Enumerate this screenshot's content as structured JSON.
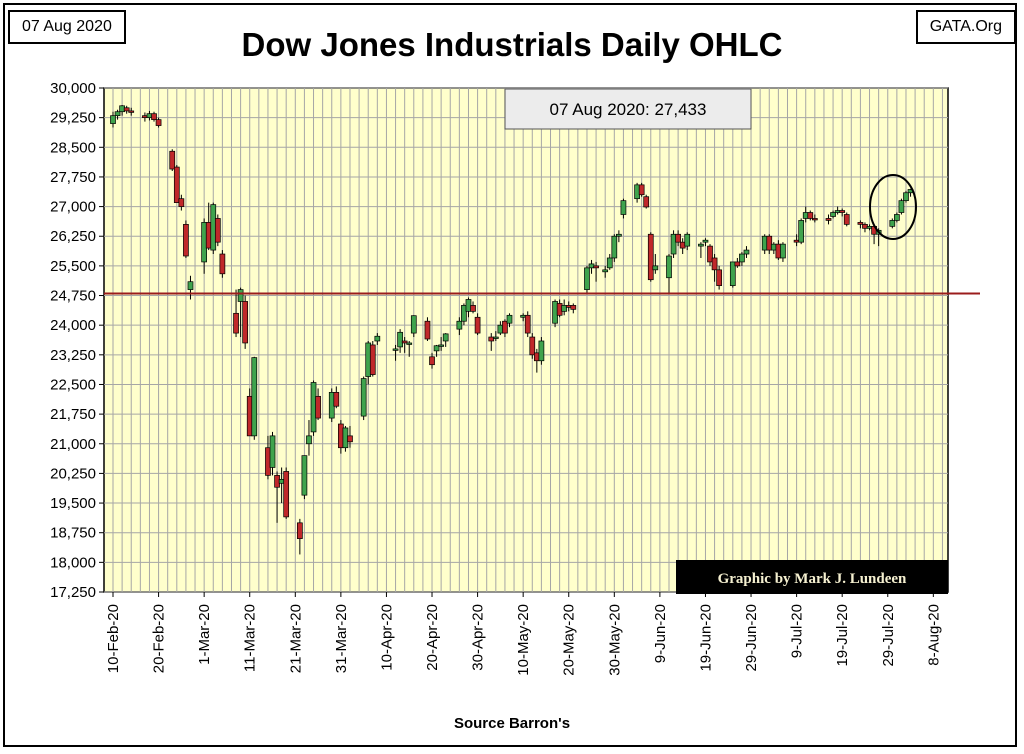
{
  "header": {
    "date": "07 Aug 2020",
    "site": "GATA.Org",
    "title": "Dow Jones Industrials Daily OHLC"
  },
  "footer": {
    "source": "Source Barron's"
  },
  "chart_data": {
    "type": "candlestick",
    "title": "Dow Jones Industrials Daily OHLC",
    "ylim": [
      17250,
      30000
    ],
    "y_ticks": [
      "30,000",
      "29,250",
      "28,500",
      "27,750",
      "27,000",
      "26,250",
      "25,500",
      "24,750",
      "24,000",
      "23,250",
      "22,500",
      "21,750",
      "21,000",
      "20,250",
      "19,500",
      "18,750",
      "18,000",
      "17,250"
    ],
    "y_tick_values": [
      30000,
      29250,
      28500,
      27750,
      27000,
      26250,
      25500,
      24750,
      24000,
      23250,
      22500,
      21750,
      21000,
      20250,
      19500,
      18750,
      18000,
      17250
    ],
    "x_ticks": [
      "10-Feb-20",
      "20-Feb-20",
      "1-Mar-20",
      "11-Mar-20",
      "21-Mar-20",
      "31-Mar-20",
      "10-Apr-20",
      "20-Apr-20",
      "30-Apr-20",
      "10-May-20",
      "20-May-20",
      "30-May-20",
      "9-Jun-20",
      "19-Jun-20",
      "29-Jun-20",
      "9-Jul-20",
      "19-Jul-20",
      "29-Jul-20",
      "8-Aug-20"
    ],
    "x_tick_days": [
      0,
      10,
      20,
      30,
      40,
      50,
      60,
      70,
      80,
      90,
      100,
      110,
      120,
      130,
      140,
      150,
      160,
      170,
      180
    ],
    "grid": true,
    "annotation": "07 Aug 2020: 27,433",
    "reference_line": 24800,
    "credit": "Graphic by Mark J. Lundeen",
    "candles": [
      {
        "d": 0,
        "o": 29100,
        "h": 29400,
        "l": 29000,
        "c": 29300
      },
      {
        "d": 1,
        "o": 29300,
        "h": 29450,
        "l": 29200,
        "c": 29400
      },
      {
        "d": 2,
        "o": 29400,
        "h": 29570,
        "l": 29300,
        "c": 29550
      },
      {
        "d": 3,
        "o": 29500,
        "h": 29550,
        "l": 29350,
        "c": 29420
      },
      {
        "d": 4,
        "o": 29420,
        "h": 29500,
        "l": 29300,
        "c": 29400
      },
      {
        "d": 7,
        "o": 29300,
        "h": 29380,
        "l": 29150,
        "c": 29250
      },
      {
        "d": 8,
        "o": 29250,
        "h": 29420,
        "l": 29180,
        "c": 29350
      },
      {
        "d": 9,
        "o": 29350,
        "h": 29400,
        "l": 29150,
        "c": 29200
      },
      {
        "d": 10,
        "o": 29200,
        "h": 29250,
        "l": 29000,
        "c": 29050
      },
      {
        "d": 13,
        "o": 28400,
        "h": 28450,
        "l": 27900,
        "c": 27950
      },
      {
        "d": 14,
        "o": 28000,
        "h": 28050,
        "l": 27100,
        "c": 27100
      },
      {
        "d": 15,
        "o": 27200,
        "h": 27300,
        "l": 26900,
        "c": 27000
      },
      {
        "d": 16,
        "o": 26550,
        "h": 26650,
        "l": 25700,
        "c": 25750
      },
      {
        "d": 17,
        "o": 24900,
        "h": 25250,
        "l": 24650,
        "c": 25100
      },
      {
        "d": 20,
        "o": 25600,
        "h": 26700,
        "l": 25300,
        "c": 26600
      },
      {
        "d": 21,
        "o": 26600,
        "h": 27100,
        "l": 25900,
        "c": 25950
      },
      {
        "d": 22,
        "o": 25900,
        "h": 27100,
        "l": 25800,
        "c": 27050
      },
      {
        "d": 23,
        "o": 26700,
        "h": 26800,
        "l": 26000,
        "c": 26100
      },
      {
        "d": 24,
        "o": 25800,
        "h": 25900,
        "l": 25200,
        "c": 25300
      },
      {
        "d": 27,
        "o": 24300,
        "h": 24900,
        "l": 23700,
        "c": 23800
      },
      {
        "d": 28,
        "o": 24600,
        "h": 24950,
        "l": 23700,
        "c": 24900
      },
      {
        "d": 29,
        "o": 24600,
        "h": 24750,
        "l": 23400,
        "c": 23550
      },
      {
        "d": 30,
        "o": 22200,
        "h": 22400,
        "l": 21200,
        "c": 21200
      },
      {
        "d": 31,
        "o": 21200,
        "h": 23200,
        "l": 21100,
        "c": 23180
      },
      {
        "d": 34,
        "o": 20900,
        "h": 21200,
        "l": 20100,
        "c": 20200
      },
      {
        "d": 35,
        "o": 20400,
        "h": 21300,
        "l": 20200,
        "c": 21200
      },
      {
        "d": 36,
        "o": 20200,
        "h": 20300,
        "l": 19000,
        "c": 19900
      },
      {
        "d": 37,
        "o": 20000,
        "h": 20400,
        "l": 19500,
        "c": 20100
      },
      {
        "d": 38,
        "o": 20300,
        "h": 20400,
        "l": 19100,
        "c": 19150
      },
      {
        "d": 41,
        "o": 19000,
        "h": 19100,
        "l": 18200,
        "c": 18600
      },
      {
        "d": 42,
        "o": 19700,
        "h": 20700,
        "l": 19600,
        "c": 20700
      },
      {
        "d": 43,
        "o": 21000,
        "h": 21600,
        "l": 20700,
        "c": 21200
      },
      {
        "d": 44,
        "o": 21300,
        "h": 22600,
        "l": 21200,
        "c": 22550
      },
      {
        "d": 45,
        "o": 22200,
        "h": 22400,
        "l": 21600,
        "c": 21650
      },
      {
        "d": 48,
        "o": 21650,
        "h": 22400,
        "l": 21550,
        "c": 22300
      },
      {
        "d": 49,
        "o": 22300,
        "h": 22450,
        "l": 21900,
        "c": 21950
      },
      {
        "d": 50,
        "o": 21500,
        "h": 21600,
        "l": 20750,
        "c": 20900
      },
      {
        "d": 51,
        "o": 20900,
        "h": 21450,
        "l": 20800,
        "c": 21400
      },
      {
        "d": 52,
        "o": 21200,
        "h": 21450,
        "l": 20900,
        "c": 21050
      },
      {
        "d": 55,
        "o": 21700,
        "h": 22700,
        "l": 21600,
        "c": 22650
      },
      {
        "d": 56,
        "o": 22700,
        "h": 23600,
        "l": 22500,
        "c": 23550
      },
      {
        "d": 57,
        "o": 23500,
        "h": 23600,
        "l": 22700,
        "c": 22750
      },
      {
        "d": 58,
        "o": 23600,
        "h": 23800,
        "l": 23500,
        "c": 23720
      },
      {
        "d": 62,
        "o": 23400,
        "h": 23500,
        "l": 23100,
        "c": 23400
      },
      {
        "d": 63,
        "o": 23450,
        "h": 23900,
        "l": 23300,
        "c": 23820
      },
      {
        "d": 64,
        "o": 23600,
        "h": 23700,
        "l": 23300,
        "c": 23550
      },
      {
        "d": 65,
        "o": 23550,
        "h": 23600,
        "l": 23200,
        "c": 23550
      },
      {
        "d": 66,
        "o": 23800,
        "h": 24250,
        "l": 23700,
        "c": 24240
      },
      {
        "d": 69,
        "o": 24100,
        "h": 24200,
        "l": 23600,
        "c": 23650
      },
      {
        "d": 70,
        "o": 23200,
        "h": 23300,
        "l": 22900,
        "c": 23000
      },
      {
        "d": 71,
        "o": 23350,
        "h": 23500,
        "l": 23200,
        "c": 23480
      },
      {
        "d": 72,
        "o": 23480,
        "h": 23700,
        "l": 23350,
        "c": 23500
      },
      {
        "d": 73,
        "o": 23600,
        "h": 23800,
        "l": 23450,
        "c": 23780
      },
      {
        "d": 76,
        "o": 23900,
        "h": 24200,
        "l": 23750,
        "c": 24100
      },
      {
        "d": 77,
        "o": 24100,
        "h": 24550,
        "l": 24000,
        "c": 24500
      },
      {
        "d": 78,
        "o": 24350,
        "h": 24700,
        "l": 24200,
        "c": 24650
      },
      {
        "d": 79,
        "o": 24500,
        "h": 24600,
        "l": 24300,
        "c": 24350
      },
      {
        "d": 80,
        "o": 24200,
        "h": 24300,
        "l": 23750,
        "c": 23800
      },
      {
        "d": 83,
        "o": 23700,
        "h": 23800,
        "l": 23350,
        "c": 23600
      },
      {
        "d": 84,
        "o": 23700,
        "h": 23850,
        "l": 23600,
        "c": 23700
      },
      {
        "d": 85,
        "o": 23800,
        "h": 24100,
        "l": 23750,
        "c": 24000
      },
      {
        "d": 86,
        "o": 24100,
        "h": 24150,
        "l": 23700,
        "c": 23800
      },
      {
        "d": 87,
        "o": 24050,
        "h": 24300,
        "l": 23950,
        "c": 24250
      },
      {
        "d": 90,
        "o": 24200,
        "h": 24300,
        "l": 24100,
        "c": 24250
      },
      {
        "d": 91,
        "o": 24250,
        "h": 24350,
        "l": 23700,
        "c": 23800
      },
      {
        "d": 92,
        "o": 23700,
        "h": 23800,
        "l": 23150,
        "c": 23250
      },
      {
        "d": 93,
        "o": 23300,
        "h": 23400,
        "l": 22800,
        "c": 23100
      },
      {
        "d": 94,
        "o": 23100,
        "h": 23700,
        "l": 23000,
        "c": 23600
      },
      {
        "d": 97,
        "o": 24050,
        "h": 24650,
        "l": 23950,
        "c": 24600
      },
      {
        "d": 98,
        "o": 24550,
        "h": 24650,
        "l": 24200,
        "c": 24250
      },
      {
        "d": 99,
        "o": 24350,
        "h": 24650,
        "l": 24250,
        "c": 24500
      },
      {
        "d": 100,
        "o": 24500,
        "h": 24600,
        "l": 24350,
        "c": 24450
      },
      {
        "d": 101,
        "o": 24500,
        "h": 24550,
        "l": 24300,
        "c": 24400
      },
      {
        "d": 104,
        "o": 24900,
        "h": 25500,
        "l": 24800,
        "c": 25450
      },
      {
        "d": 105,
        "o": 25450,
        "h": 25650,
        "l": 25300,
        "c": 25550
      },
      {
        "d": 106,
        "o": 25500,
        "h": 25600,
        "l": 25100,
        "c": 25450
      },
      {
        "d": 108,
        "o": 25350,
        "h": 25500,
        "l": 25200,
        "c": 25400
      },
      {
        "d": 109,
        "o": 25450,
        "h": 25800,
        "l": 25400,
        "c": 25700
      },
      {
        "d": 110,
        "o": 25700,
        "h": 26300,
        "l": 25600,
        "c": 26250
      },
      {
        "d": 111,
        "o": 26250,
        "h": 26400,
        "l": 26100,
        "c": 26300
      },
      {
        "d": 112,
        "o": 26800,
        "h": 27200,
        "l": 26700,
        "c": 27150
      },
      {
        "d": 115,
        "o": 27200,
        "h": 27600,
        "l": 27100,
        "c": 27550
      },
      {
        "d": 116,
        "o": 27550,
        "h": 27600,
        "l": 27250,
        "c": 27300
      },
      {
        "d": 117,
        "o": 27250,
        "h": 27300,
        "l": 26950,
        "c": 26990
      },
      {
        "d": 118,
        "o": 26300,
        "h": 26350,
        "l": 25100,
        "c": 25150
      },
      {
        "d": 119,
        "o": 25400,
        "h": 25800,
        "l": 25300,
        "c": 25500
      },
      {
        "d": 122,
        "o": 25200,
        "h": 25800,
        "l": 24800,
        "c": 25750
      },
      {
        "d": 123,
        "o": 25800,
        "h": 26400,
        "l": 25700,
        "c": 26300
      },
      {
        "d": 124,
        "o": 26300,
        "h": 26400,
        "l": 26000,
        "c": 26100
      },
      {
        "d": 125,
        "o": 26100,
        "h": 26200,
        "l": 25800,
        "c": 25950
      },
      {
        "d": 126,
        "o": 26000,
        "h": 26350,
        "l": 25900,
        "c": 26300
      },
      {
        "d": 129,
        "o": 26000,
        "h": 26100,
        "l": 25700,
        "c": 26050
      },
      {
        "d": 130,
        "o": 26100,
        "h": 26200,
        "l": 26000,
        "c": 26150
      },
      {
        "d": 131,
        "o": 26000,
        "h": 26050,
        "l": 25500,
        "c": 25600
      },
      {
        "d": 132,
        "o": 25700,
        "h": 25800,
        "l": 25100,
        "c": 25400
      },
      {
        "d": 133,
        "o": 25400,
        "h": 25500,
        "l": 24900,
        "c": 25000
      },
      {
        "d": 136,
        "o": 25000,
        "h": 25600,
        "l": 24950,
        "c": 25600
      },
      {
        "d": 137,
        "o": 25600,
        "h": 25700,
        "l": 25450,
        "c": 25500
      },
      {
        "d": 138,
        "o": 25600,
        "h": 25850,
        "l": 25500,
        "c": 25800
      },
      {
        "d": 139,
        "o": 25800,
        "h": 26000,
        "l": 25700,
        "c": 25900
      },
      {
        "d": 143,
        "o": 25900,
        "h": 26300,
        "l": 25800,
        "c": 26250
      },
      {
        "d": 144,
        "o": 26250,
        "h": 26300,
        "l": 25800,
        "c": 25900
      },
      {
        "d": 145,
        "o": 25900,
        "h": 26100,
        "l": 25800,
        "c": 26050
      },
      {
        "d": 146,
        "o": 26050,
        "h": 26150,
        "l": 25650,
        "c": 25700
      },
      {
        "d": 147,
        "o": 25700,
        "h": 26100,
        "l": 25600,
        "c": 26050
      },
      {
        "d": 150,
        "o": 26150,
        "h": 26300,
        "l": 26000,
        "c": 26100
      },
      {
        "d": 151,
        "o": 26100,
        "h": 26700,
        "l": 26050,
        "c": 26650
      },
      {
        "d": 152,
        "o": 26700,
        "h": 27000,
        "l": 26600,
        "c": 26850
      },
      {
        "d": 153,
        "o": 26850,
        "h": 26900,
        "l": 26650,
        "c": 26700
      },
      {
        "d": 154,
        "o": 26700,
        "h": 26800,
        "l": 26600,
        "c": 26680
      },
      {
        "d": 157,
        "o": 26700,
        "h": 26800,
        "l": 26550,
        "c": 26650
      },
      {
        "d": 158,
        "o": 26750,
        "h": 26900,
        "l": 26700,
        "c": 26850
      },
      {
        "d": 159,
        "o": 26850,
        "h": 27000,
        "l": 26800,
        "c": 26900
      },
      {
        "d": 160,
        "o": 26900,
        "h": 26950,
        "l": 26750,
        "c": 26850
      },
      {
        "d": 161,
        "o": 26800,
        "h": 26850,
        "l": 26500,
        "c": 26550
      },
      {
        "d": 164,
        "o": 26600,
        "h": 26650,
        "l": 26450,
        "c": 26550
      },
      {
        "d": 165,
        "o": 26550,
        "h": 26600,
        "l": 26350,
        "c": 26450
      },
      {
        "d": 166,
        "o": 26450,
        "h": 26550,
        "l": 26400,
        "c": 26500
      },
      {
        "d": 167,
        "o": 26500,
        "h": 26550,
        "l": 26050,
        "c": 26300
      },
      {
        "d": 168,
        "o": 26300,
        "h": 26450,
        "l": 26000,
        "c": 26400
      },
      {
        "d": 171,
        "o": 26500,
        "h": 26700,
        "l": 26450,
        "c": 26650
      },
      {
        "d": 172,
        "o": 26650,
        "h": 26850,
        "l": 26600,
        "c": 26800
      },
      {
        "d": 173,
        "o": 26850,
        "h": 27200,
        "l": 26800,
        "c": 27150
      },
      {
        "d": 174,
        "o": 27150,
        "h": 27400,
        "l": 27100,
        "c": 27350
      },
      {
        "d": 175,
        "o": 27350,
        "h": 27450,
        "l": 27250,
        "c": 27433
      }
    ]
  }
}
